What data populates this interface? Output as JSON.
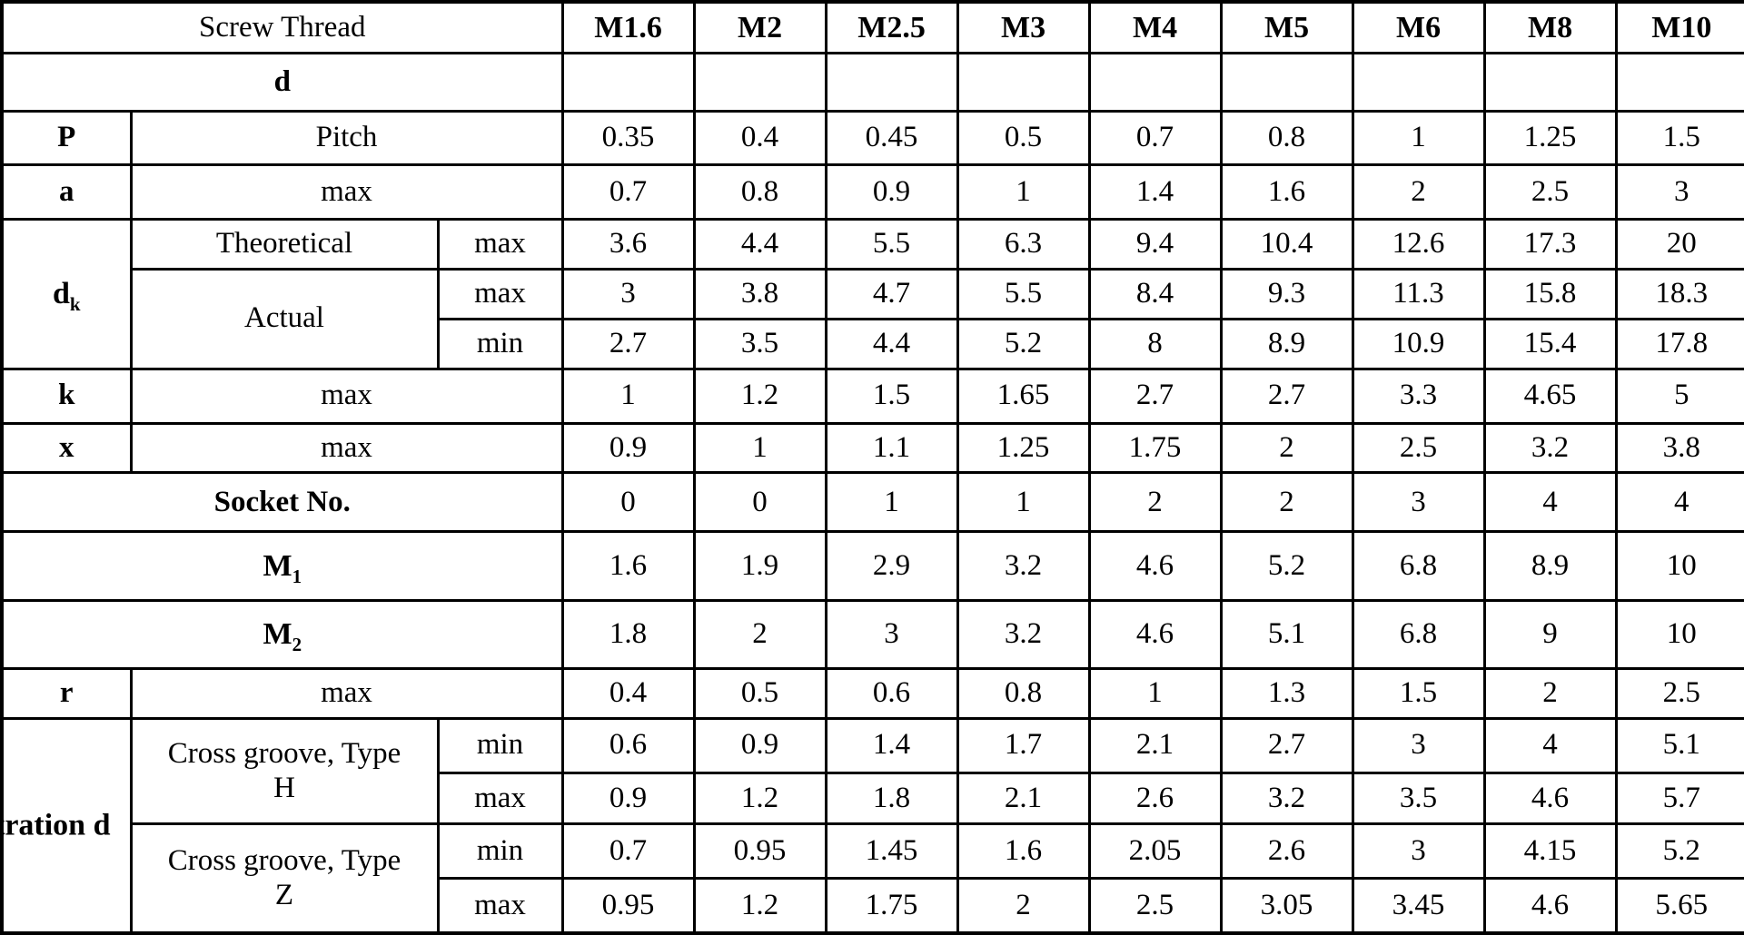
{
  "table": {
    "screw_thread_label": "Screw Thread",
    "d_label": "d",
    "columns": [
      "M1.6",
      "M2",
      "M2.5",
      "M3",
      "M4",
      "M5",
      "M6",
      "M8",
      "M10"
    ],
    "rows": {
      "d": {
        "values": [
          "",
          "",
          "",
          "",
          "",
          "",
          "",
          "",
          ""
        ]
      },
      "pitch": {
        "key": "P",
        "desc": "Pitch",
        "values": [
          "0.35",
          "0.4",
          "0.45",
          "0.5",
          "0.7",
          "0.8",
          "1",
          "1.25",
          "1.5"
        ]
      },
      "a": {
        "key": "a",
        "desc": "max",
        "values": [
          "0.7",
          "0.8",
          "0.9",
          "1",
          "1.4",
          "1.6",
          "2",
          "2.5",
          "3"
        ]
      },
      "dk": {
        "base": "d",
        "sub": "k",
        "theoretical": {
          "desc": "Theoretical",
          "limit": "max",
          "values": [
            "3.6",
            "4.4",
            "5.5",
            "6.3",
            "9.4",
            "10.4",
            "12.6",
            "17.3",
            "20"
          ]
        },
        "actual": {
          "desc": "Actual",
          "max": {
            "limit": "max",
            "values": [
              "3",
              "3.8",
              "4.7",
              "5.5",
              "8.4",
              "9.3",
              "11.3",
              "15.8",
              "18.3"
            ]
          },
          "min": {
            "limit": "min",
            "values": [
              "2.7",
              "3.5",
              "4.4",
              "5.2",
              "8",
              "8.9",
              "10.9",
              "15.4",
              "17.8"
            ]
          }
        }
      },
      "k": {
        "key": "k",
        "desc": "max",
        "values": [
          "1",
          "1.2",
          "1.5",
          "1.65",
          "2.7",
          "2.7",
          "3.3",
          "4.65",
          "5"
        ]
      },
      "x": {
        "key": "x",
        "desc": "max",
        "values": [
          "0.9",
          "1",
          "1.1",
          "1.25",
          "1.75",
          "2",
          "2.5",
          "3.2",
          "3.8"
        ]
      },
      "socket": {
        "label": "Socket No.",
        "values": [
          "0",
          "0",
          "1",
          "1",
          "2",
          "2",
          "3",
          "4",
          "4"
        ]
      },
      "m1": {
        "base": "M",
        "sub": "1",
        "values": [
          "1.6",
          "1.9",
          "2.9",
          "3.2",
          "4.6",
          "5.2",
          "6.8",
          "8.9",
          "10"
        ]
      },
      "m2": {
        "base": "M",
        "sub": "2",
        "values": [
          "1.8",
          "2",
          "3",
          "3.2",
          "4.6",
          "5.1",
          "6.8",
          "9",
          "10"
        ]
      },
      "r": {
        "key": "r",
        "desc": "max",
        "values": [
          "0.4",
          "0.5",
          "0.6",
          "0.8",
          "1",
          "1.3",
          "1.5",
          "2",
          "2.5"
        ]
      },
      "penetration": {
        "clipped_label": "tration d"
      },
      "groove_h": {
        "line1": "Cross groove, Type",
        "line2": "H",
        "min": {
          "limit": "min",
          "values": [
            "0.6",
            "0.9",
            "1.4",
            "1.7",
            "2.1",
            "2.7",
            "3",
            "4",
            "5.1"
          ]
        },
        "max": {
          "limit": "max",
          "values": [
            "0.9",
            "1.2",
            "1.8",
            "2.1",
            "2.6",
            "3.2",
            "3.5",
            "4.6",
            "5.7"
          ]
        }
      },
      "groove_z": {
        "line1": "Cross groove, Type",
        "line2": "Z",
        "min": {
          "limit": "min",
          "values": [
            "0.7",
            "0.95",
            "1.45",
            "1.6",
            "2.05",
            "2.6",
            "3",
            "4.15",
            "5.2"
          ]
        },
        "max": {
          "limit": "max",
          "values": [
            "0.95",
            "1.2",
            "1.75",
            "2",
            "2.5",
            "3.05",
            "3.45",
            "4.6",
            "5.65"
          ]
        }
      }
    }
  }
}
